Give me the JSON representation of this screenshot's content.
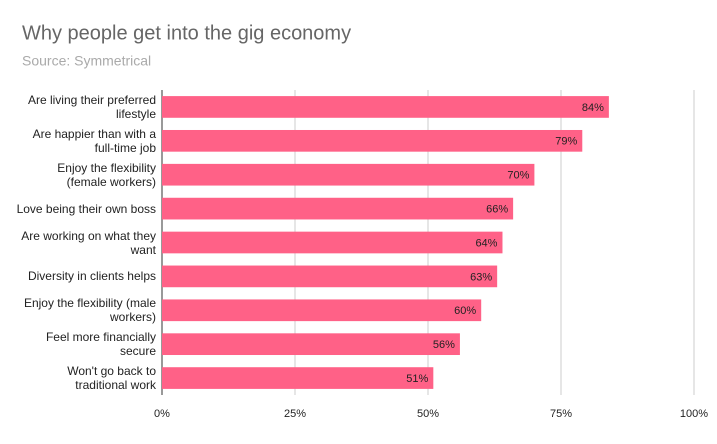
{
  "chart_data": {
    "type": "barh",
    "title": "Why people get into the gig economy",
    "subtitle": "Source: Symmetrical",
    "categories": [
      "Are living their preferred lifestyle",
      "Are happier than with a full-time job",
      "Enjoy the flexibility (female workers)",
      "Love being their own boss",
      "Are working on what they want",
      "Diversity in clients helps",
      "Enjoy the flexibility (male workers)",
      "Feel more financially secure",
      "Won't go back to traditional work"
    ],
    "values": [
      84,
      79,
      70,
      66,
      64,
      63,
      60,
      56,
      51
    ],
    "value_labels": [
      "84%",
      "79%",
      "70%",
      "66%",
      "64%",
      "63%",
      "60%",
      "56%",
      "51%"
    ],
    "color": "#ff6187",
    "xlim": [
      0,
      100
    ],
    "xticks": [
      {
        "value": 0,
        "label": "0%"
      },
      {
        "value": 25,
        "label": "25%"
      },
      {
        "value": 50,
        "label": "50%"
      },
      {
        "value": 75,
        "label": "75%"
      },
      {
        "value": 100,
        "label": "100%"
      }
    ],
    "grid": true
  }
}
